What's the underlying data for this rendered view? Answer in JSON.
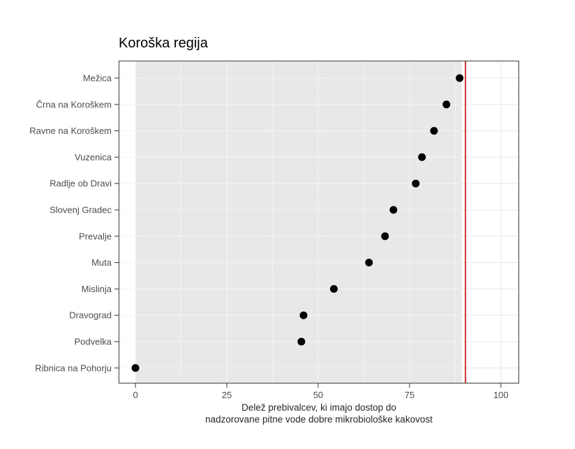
{
  "chart_data": {
    "type": "scatter",
    "variant": "cleveland-dot-plot",
    "orientation": "horizontal",
    "title": "Koroška regija",
    "xlabel": "Delež prebivalcev, ki imajo dostop do nadzorovane pitne vode dobre mikrobiološke kakovost",
    "xlabel_lines": [
      "Delež prebivalcev, ki imajo dostop do",
      "nadzorovane pitne vode dobre mikrobiološke kakovost"
    ],
    "ylabel": "",
    "categories": [
      "Mežica",
      "Črna na Koroškem",
      "Ravne na Koroškem",
      "Vuzenica",
      "Radlje ob Dravi",
      "Slovenj Gradec",
      "Prevalje",
      "Muta",
      "Mislinja",
      "Dravograd",
      "Podvelka",
      "Ribnica na Pohorju"
    ],
    "values": [
      88.7,
      85.1,
      81.7,
      78.4,
      76.7,
      70.6,
      68.3,
      63.9,
      54.3,
      46.0,
      45.4,
      0
    ],
    "x_ticks": [
      0,
      25,
      50,
      75,
      100
    ],
    "x_tick_labels": [
      "0",
      "25",
      "50",
      "75",
      "100"
    ],
    "x_minor_ticks": [
      12.5,
      37.5,
      62.5,
      87.5
    ],
    "xlim": [
      -4.6,
      105
    ],
    "grid": true,
    "legend": "none",
    "reference_line": {
      "x": 90.3,
      "color": "#e8362f"
    },
    "band": {
      "from": 0,
      "to": 89.3,
      "color": "#e8e8e8"
    },
    "colors": {
      "point": "#000000",
      "grid_on_white": "#e9e9e9",
      "grid_on_band": "#f4f4f4",
      "panel_border": "#3a3a3a",
      "tick": "#333333",
      "tick_label": "#4d4d4d",
      "axis_title": "#262626",
      "title": "#000000",
      "background": "#ffffff"
    }
  }
}
